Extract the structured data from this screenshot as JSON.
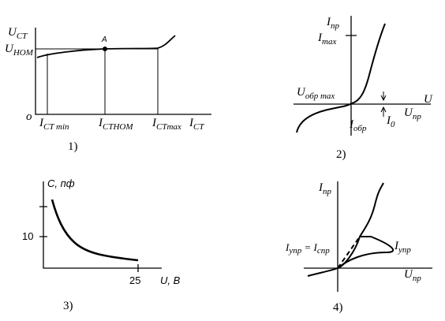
{
  "panels": [
    {
      "caption": "1)",
      "labels": [
        {
          "main": "U",
          "sub": "CT"
        },
        {
          "main": "U",
          "sub": "НОМ"
        },
        {
          "main": "o"
        },
        {
          "main": "A"
        },
        {
          "main": "I",
          "sub": "CT min"
        },
        {
          "main": "I",
          "sub": "CTНОМ"
        },
        {
          "main": "I",
          "sub": "CTmax"
        },
        {
          "main": "I",
          "sub": "CT"
        }
      ]
    },
    {
      "caption": "2)",
      "labels": [
        {
          "main": "I",
          "sub": "пр"
        },
        {
          "main": "I",
          "sub": "max"
        },
        {
          "main": "U"
        },
        {
          "main": "U",
          "sub": "пр"
        },
        {
          "main": "U",
          "sub": "обр max"
        },
        {
          "main": "I",
          "sub": "обр"
        },
        {
          "main": "I",
          "sub": "0"
        }
      ]
    },
    {
      "caption": "3)",
      "labels": [
        {
          "main": "C, пф"
        },
        {
          "main": "10"
        },
        {
          "main": "25"
        },
        {
          "main": "U, В"
        }
      ]
    },
    {
      "caption": "4)",
      "labels": [
        {
          "main": "I",
          "sub": "пр"
        },
        {
          "main": "U",
          "sub": "пр"
        },
        {
          "main": "I",
          "sub": "упр"
        },
        {
          "main": " = I",
          "sub": "спр"
        },
        {
          "main": "I",
          "sub": "упр"
        }
      ]
    }
  ]
}
